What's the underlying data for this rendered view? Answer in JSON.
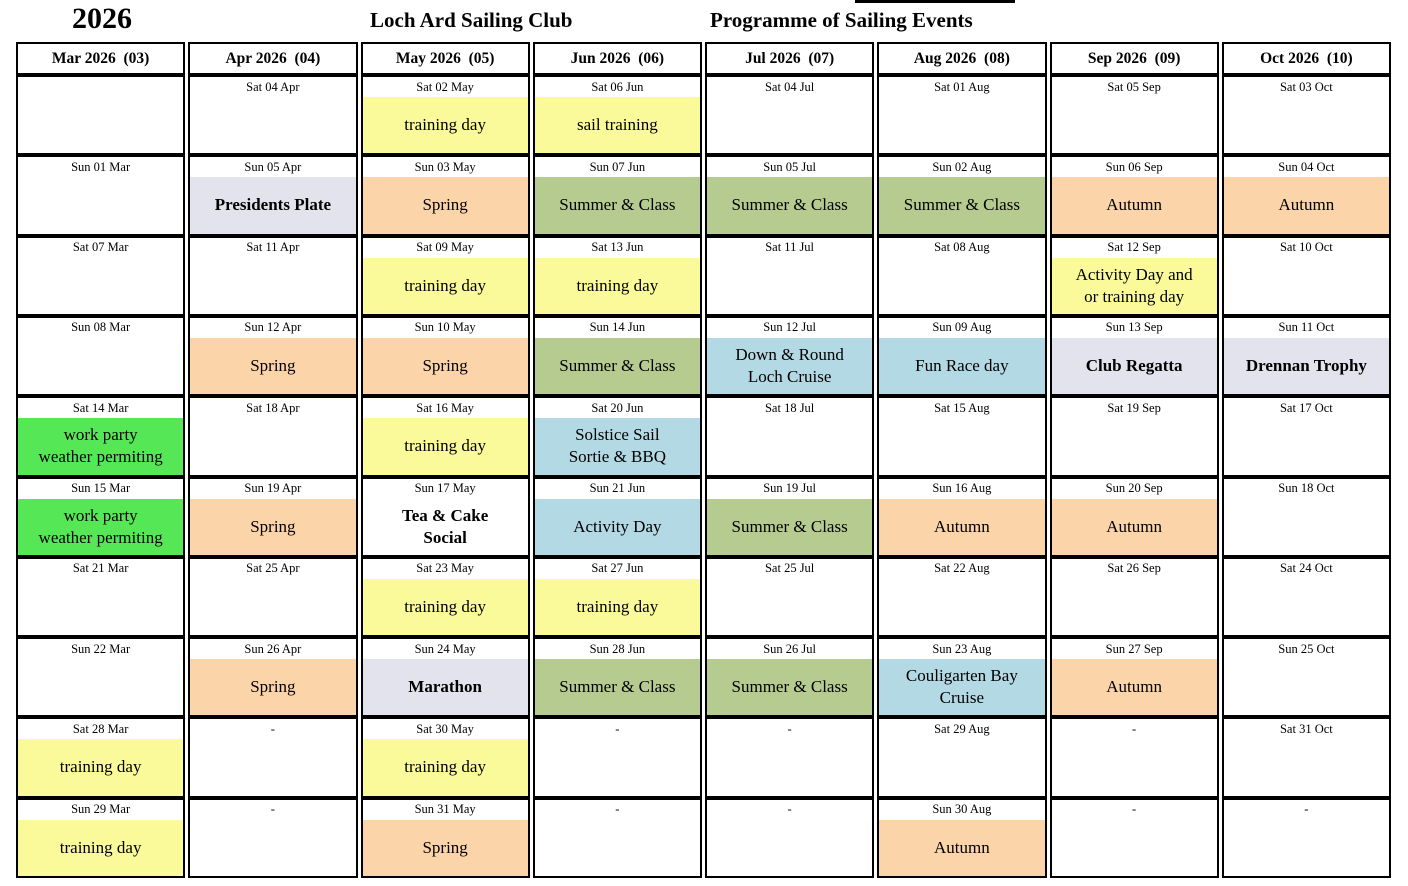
{
  "title": {
    "year": "2026",
    "club": "Loch Ard Sailing Club",
    "programme": "Programme of Sailing Events"
  },
  "colors": {
    "border": "#000000",
    "training_yellow": "#FAFA9B",
    "series_peach": "#FBD4A9",
    "summer_olive": "#B6CB8F",
    "cruise_blue": "#B3D9E4",
    "workparty_green": "#55E755",
    "trophy_lavender": "#E3E3EE",
    "plain_white": "#FFFFFF"
  },
  "event_types": {
    "yellow": {
      "bg": "#FAFA9B",
      "bold": false,
      "dotted": false
    },
    "peach": {
      "bg": "#FBD4A9",
      "bold": false,
      "dotted": false
    },
    "olive": {
      "bg": "#B6CB8F",
      "bold": false,
      "dotted": false
    },
    "blue": {
      "bg": "#B3D9E4",
      "bold": false,
      "dotted": false
    },
    "green": {
      "bg": "#55E755",
      "bold": false,
      "dotted": false
    },
    "lavender": {
      "bg": "#E3E3EE",
      "bold": true,
      "dotted": true
    },
    "plain": {
      "bg": "#FFFFFF",
      "bold": true,
      "dotted": false
    },
    "none": {
      "bg": "",
      "bold": false,
      "dotted": false
    }
  },
  "months": [
    {
      "label": "Mar 2026  (03)",
      "cells": [
        {
          "date": "",
          "event": "",
          "type": "none"
        },
        {
          "date": "Sun 01 Mar",
          "event": "",
          "type": "none"
        },
        {
          "date": "Sat 07 Mar",
          "event": "",
          "type": "none"
        },
        {
          "date": "Sun 08 Mar",
          "event": "",
          "type": "none"
        },
        {
          "date": "Sat 14 Mar",
          "event": "work party\nweather permiting",
          "type": "green"
        },
        {
          "date": "Sun 15 Mar",
          "event": "work party\nweather permiting",
          "type": "green"
        },
        {
          "date": "Sat 21 Mar",
          "event": "",
          "type": "none"
        },
        {
          "date": "Sun 22 Mar",
          "event": "",
          "type": "none"
        },
        {
          "date": "Sat 28 Mar",
          "event": "training day",
          "type": "yellow"
        },
        {
          "date": "Sun 29 Mar",
          "event": "training day",
          "type": "yellow"
        }
      ]
    },
    {
      "label": "Apr 2026  (04)",
      "cells": [
        {
          "date": "Sat 04 Apr",
          "event": "",
          "type": "none"
        },
        {
          "date": "Sun 05 Apr",
          "event": "Presidents Plate",
          "type": "lavender"
        },
        {
          "date": "Sat 11 Apr",
          "event": "",
          "type": "none"
        },
        {
          "date": "Sun 12 Apr",
          "event": "Spring",
          "type": "peach"
        },
        {
          "date": "Sat 18 Apr",
          "event": "",
          "type": "none"
        },
        {
          "date": "Sun 19 Apr",
          "event": "Spring",
          "type": "peach"
        },
        {
          "date": "Sat 25 Apr",
          "event": "",
          "type": "none"
        },
        {
          "date": "Sun 26 Apr",
          "event": "Spring",
          "type": "peach"
        },
        {
          "date": "-",
          "event": "",
          "type": "none"
        },
        {
          "date": "-",
          "event": "",
          "type": "none"
        }
      ]
    },
    {
      "label": "May 2026  (05)",
      "cells": [
        {
          "date": "Sat 02 May",
          "event": "training day",
          "type": "yellow"
        },
        {
          "date": "Sun 03 May",
          "event": "Spring",
          "type": "peach"
        },
        {
          "date": "Sat 09 May",
          "event": "training day",
          "type": "yellow"
        },
        {
          "date": "Sun 10 May",
          "event": "Spring",
          "type": "peach"
        },
        {
          "date": "Sat 16 May",
          "event": "training day",
          "type": "yellow"
        },
        {
          "date": "Sun 17 May",
          "event": "Tea & Cake\nSocial",
          "type": "plain"
        },
        {
          "date": "Sat 23 May",
          "event": "training day",
          "type": "yellow"
        },
        {
          "date": "Sun 24 May",
          "event": "Marathon",
          "type": "lavender"
        },
        {
          "date": "Sat 30 May",
          "event": "training day",
          "type": "yellow"
        },
        {
          "date": "Sun 31 May",
          "event": "Spring",
          "type": "peach"
        }
      ]
    },
    {
      "label": "Jun 2026  (06)",
      "cells": [
        {
          "date": "Sat 06 Jun",
          "event": "sail training",
          "type": "yellow"
        },
        {
          "date": "Sun 07 Jun",
          "event": "Summer & Class",
          "type": "olive"
        },
        {
          "date": "Sat 13 Jun",
          "event": "training day",
          "type": "yellow"
        },
        {
          "date": "Sun 14 Jun",
          "event": "Summer & Class",
          "type": "olive"
        },
        {
          "date": "Sat 20 Jun",
          "event": "Solstice Sail\nSortie & BBQ",
          "type": "blue"
        },
        {
          "date": "Sun 21 Jun",
          "event": "Activity Day",
          "type": "blue"
        },
        {
          "date": "Sat 27 Jun",
          "event": "training day",
          "type": "yellow"
        },
        {
          "date": "Sun 28 Jun",
          "event": "Summer & Class",
          "type": "olive"
        },
        {
          "date": "-",
          "event": "",
          "type": "none"
        },
        {
          "date": "-",
          "event": "",
          "type": "none"
        }
      ]
    },
    {
      "label": "Jul 2026  (07)",
      "cells": [
        {
          "date": "Sat 04 Jul",
          "event": "",
          "type": "none"
        },
        {
          "date": "Sun 05 Jul",
          "event": "Summer & Class",
          "type": "olive"
        },
        {
          "date": "Sat 11 Jul",
          "event": "",
          "type": "none"
        },
        {
          "date": "Sun 12 Jul",
          "event": "Down & Round\nLoch Cruise",
          "type": "blue"
        },
        {
          "date": "Sat 18 Jul",
          "event": "",
          "type": "none"
        },
        {
          "date": "Sun 19 Jul",
          "event": "Summer & Class",
          "type": "olive"
        },
        {
          "date": "Sat 25 Jul",
          "event": "",
          "type": "none"
        },
        {
          "date": "Sun 26 Jul",
          "event": "Summer & Class",
          "type": "olive"
        },
        {
          "date": "-",
          "event": "",
          "type": "none"
        },
        {
          "date": "-",
          "event": "",
          "type": "none"
        }
      ]
    },
    {
      "label": "Aug 2026  (08)",
      "cells": [
        {
          "date": "Sat 01 Aug",
          "event": "",
          "type": "none"
        },
        {
          "date": "Sun 02 Aug",
          "event": "Summer & Class",
          "type": "olive"
        },
        {
          "date": "Sat 08 Aug",
          "event": "",
          "type": "none"
        },
        {
          "date": "Sun 09 Aug",
          "event": "Fun Race day",
          "type": "blue"
        },
        {
          "date": "Sat 15 Aug",
          "event": "",
          "type": "none"
        },
        {
          "date": "Sun 16 Aug",
          "event": "Autumn",
          "type": "peach"
        },
        {
          "date": "Sat 22 Aug",
          "event": "",
          "type": "none"
        },
        {
          "date": "Sun 23 Aug",
          "event": "Couligarten Bay\nCruise",
          "type": "blue"
        },
        {
          "date": "Sat 29 Aug",
          "event": "",
          "type": "none"
        },
        {
          "date": "Sun 30 Aug",
          "event": "Autumn",
          "type": "peach"
        }
      ]
    },
    {
      "label": "Sep 2026  (09)",
      "cells": [
        {
          "date": "Sat 05 Sep",
          "event": "",
          "type": "none"
        },
        {
          "date": "Sun 06 Sep",
          "event": "Autumn",
          "type": "peach"
        },
        {
          "date": "Sat 12 Sep",
          "event": "Activity Day and\nor training day",
          "type": "yellow"
        },
        {
          "date": "Sun 13 Sep",
          "event": "Club Regatta",
          "type": "lavender"
        },
        {
          "date": "Sat 19 Sep",
          "event": "",
          "type": "none"
        },
        {
          "date": "Sun 20 Sep",
          "event": "Autumn",
          "type": "peach"
        },
        {
          "date": "Sat 26 Sep",
          "event": "",
          "type": "none"
        },
        {
          "date": "Sun 27 Sep",
          "event": "Autumn",
          "type": "peach"
        },
        {
          "date": "-",
          "event": "",
          "type": "none"
        },
        {
          "date": "-",
          "event": "",
          "type": "none"
        }
      ]
    },
    {
      "label": "Oct 2026  (10)",
      "cells": [
        {
          "date": "Sat 03 Oct",
          "event": "",
          "type": "none"
        },
        {
          "date": "Sun 04 Oct",
          "event": "Autumn",
          "type": "peach"
        },
        {
          "date": "Sat 10 Oct",
          "event": "",
          "type": "none"
        },
        {
          "date": "Sun 11 Oct",
          "event": "Drennan Trophy",
          "type": "lavender"
        },
        {
          "date": "Sat 17 Oct",
          "event": "",
          "type": "none"
        },
        {
          "date": "Sun 18 Oct",
          "event": "",
          "type": "none"
        },
        {
          "date": "Sat 24 Oct",
          "event": "",
          "type": "none"
        },
        {
          "date": "Sun 25 Oct",
          "event": "",
          "type": "none"
        },
        {
          "date": "Sat 31 Oct",
          "event": "",
          "type": "none"
        },
        {
          "date": "-",
          "event": "",
          "type": "none"
        }
      ]
    }
  ]
}
